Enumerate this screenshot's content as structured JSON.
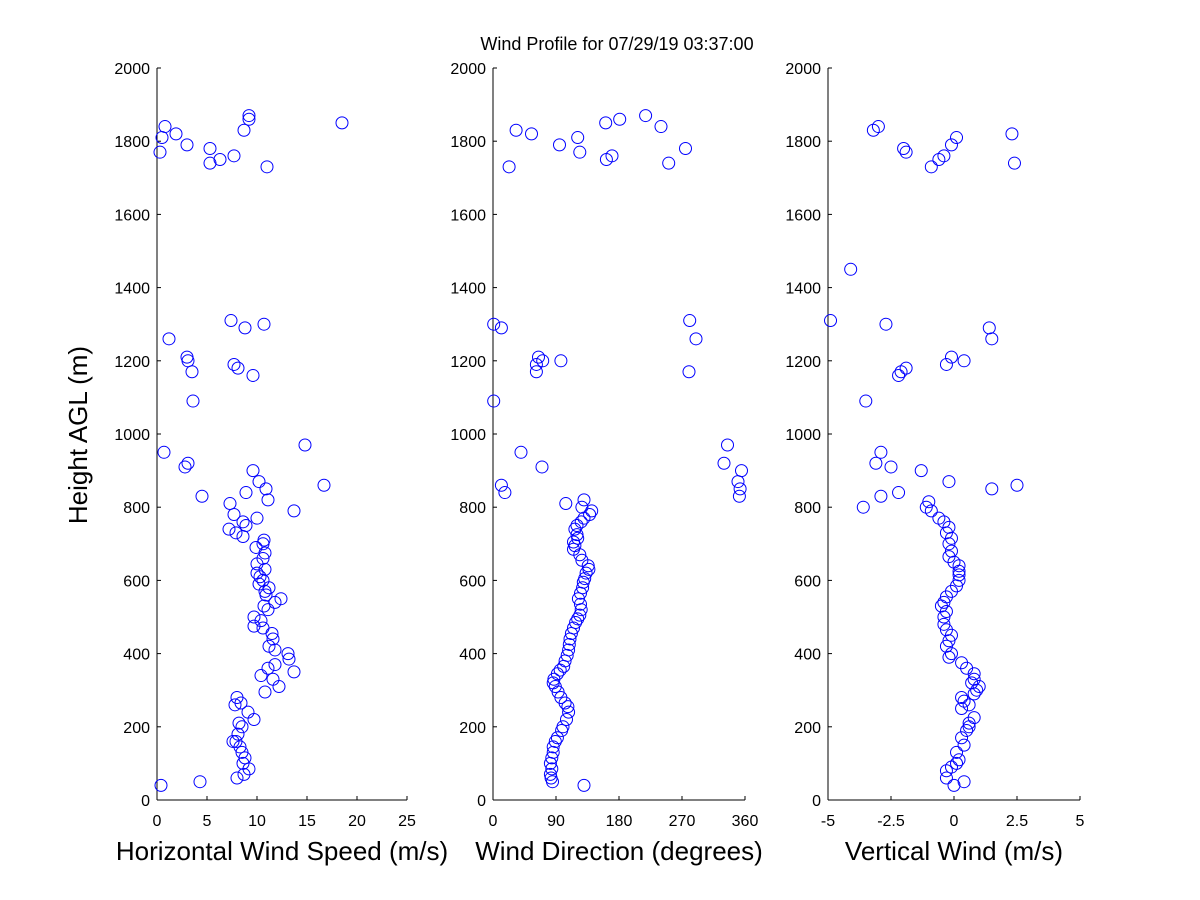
{
  "chart_data": {
    "type": "scatter",
    "title": "Wind Profile for  07/29/19 03:37:00",
    "ylabel": "Height AGL (m)",
    "ylim": [
      0,
      2000
    ],
    "yticks": [
      "0",
      "200",
      "400",
      "600",
      "800",
      "1000",
      "1200",
      "1400",
      "1600",
      "1800",
      "2000"
    ],
    "marker_color": "#0000ff",
    "grid": false,
    "panels": [
      {
        "xlabel": "Horizontal Wind Speed (m/s)",
        "xlim": [
          0,
          25
        ],
        "xticks": [
          "0",
          "5",
          "10",
          "15",
          "20",
          "25"
        ],
        "points": [
          [
            0.4,
            40
          ],
          [
            4.3,
            50
          ],
          [
            8.0,
            60
          ],
          [
            8.7,
            70
          ],
          [
            9.2,
            85
          ],
          [
            8.6,
            100
          ],
          [
            8.8,
            115
          ],
          [
            8.5,
            130
          ],
          [
            8.3,
            145
          ],
          [
            7.9,
            160
          ],
          [
            7.6,
            160
          ],
          [
            8.1,
            180
          ],
          [
            8.5,
            200
          ],
          [
            8.2,
            210
          ],
          [
            9.7,
            220
          ],
          [
            9.1,
            240
          ],
          [
            7.8,
            260
          ],
          [
            8.4,
            265
          ],
          [
            8.0,
            280
          ],
          [
            10.8,
            295
          ],
          [
            12.2,
            310
          ],
          [
            11.6,
            330
          ],
          [
            10.4,
            340
          ],
          [
            11.1,
            360
          ],
          [
            11.8,
            370
          ],
          [
            13.7,
            350
          ],
          [
            13.2,
            385
          ],
          [
            13.1,
            400
          ],
          [
            11.8,
            410
          ],
          [
            11.2,
            420
          ],
          [
            11.6,
            440
          ],
          [
            11.5,
            455
          ],
          [
            10.6,
            470
          ],
          [
            9.7,
            475
          ],
          [
            10.4,
            490
          ],
          [
            9.7,
            500
          ],
          [
            11.1,
            520
          ],
          [
            10.7,
            530
          ],
          [
            11.8,
            540
          ],
          [
            12.4,
            550
          ],
          [
            10.9,
            560
          ],
          [
            10.8,
            570
          ],
          [
            11.2,
            580
          ],
          [
            10.2,
            590
          ],
          [
            10.6,
            600
          ],
          [
            10.3,
            610
          ],
          [
            10.0,
            620
          ],
          [
            10.8,
            630
          ],
          [
            10.0,
            645
          ],
          [
            10.6,
            660
          ],
          [
            10.8,
            675
          ],
          [
            9.9,
            690
          ],
          [
            10.6,
            700
          ],
          [
            10.7,
            710
          ],
          [
            8.6,
            720
          ],
          [
            7.9,
            730
          ],
          [
            7.2,
            740
          ],
          [
            8.9,
            750
          ],
          [
            8.6,
            760
          ],
          [
            10.0,
            770
          ],
          [
            7.7,
            780
          ],
          [
            13.7,
            790
          ],
          [
            7.3,
            810
          ],
          [
            11.1,
            820
          ],
          [
            8.9,
            840
          ],
          [
            10.9,
            850
          ],
          [
            16.7,
            860
          ],
          [
            10.2,
            870
          ],
          [
            9.6,
            900
          ],
          [
            4.5,
            830
          ],
          [
            3.1,
            920
          ],
          [
            2.8,
            910
          ],
          [
            0.7,
            950
          ],
          [
            14.8,
            970
          ],
          [
            3.6,
            1090
          ],
          [
            3.5,
            1170
          ],
          [
            8.1,
            1180
          ],
          [
            7.7,
            1190
          ],
          [
            3.1,
            1200
          ],
          [
            3.0,
            1210
          ],
          [
            9.6,
            1160
          ],
          [
            1.2,
            1260
          ],
          [
            8.8,
            1290
          ],
          [
            10.7,
            1300
          ],
          [
            7.4,
            1310
          ],
          [
            0.3,
            1770
          ],
          [
            11.0,
            1730
          ],
          [
            5.3,
            1740
          ],
          [
            6.3,
            1750
          ],
          [
            5.3,
            1780
          ],
          [
            7.7,
            1760
          ],
          [
            3.0,
            1790
          ],
          [
            0.5,
            1810
          ],
          [
            1.9,
            1820
          ],
          [
            0.8,
            1840
          ],
          [
            8.7,
            1830
          ],
          [
            18.5,
            1850
          ],
          [
            9.2,
            1860
          ],
          [
            9.2,
            1870
          ]
        ]
      },
      {
        "xlabel": "Wind Direction (degrees)",
        "xlim": [
          0,
          360
        ],
        "xticks": [
          "0",
          "90",
          "180",
          "270",
          "360"
        ],
        "points": [
          [
            130,
            40
          ],
          [
            85,
            50
          ],
          [
            83,
            60
          ],
          [
            82,
            70
          ],
          [
            84,
            85
          ],
          [
            82,
            100
          ],
          [
            84,
            115
          ],
          [
            86,
            130
          ],
          [
            86,
            145
          ],
          [
            89,
            160
          ],
          [
            92,
            170
          ],
          [
            98,
            190
          ],
          [
            100,
            200
          ],
          [
            105,
            220
          ],
          [
            108,
            240
          ],
          [
            107,
            255
          ],
          [
            103,
            265
          ],
          [
            97,
            280
          ],
          [
            93,
            295
          ],
          [
            89,
            310
          ],
          [
            86,
            320
          ],
          [
            87,
            330
          ],
          [
            92,
            345
          ],
          [
            96,
            355
          ],
          [
            101,
            365
          ],
          [
            103,
            380
          ],
          [
            106,
            395
          ],
          [
            108,
            410
          ],
          [
            109,
            425
          ],
          [
            110,
            440
          ],
          [
            112,
            455
          ],
          [
            115,
            470
          ],
          [
            118,
            485
          ],
          [
            121,
            495
          ],
          [
            124,
            505
          ],
          [
            126,
            520
          ],
          [
            125,
            535
          ],
          [
            122,
            550
          ],
          [
            125,
            565
          ],
          [
            128,
            580
          ],
          [
            129,
            595
          ],
          [
            131,
            605
          ],
          [
            133,
            620
          ],
          [
            137,
            630
          ],
          [
            136,
            640
          ],
          [
            127,
            655
          ],
          [
            124,
            670
          ],
          [
            115,
            685
          ],
          [
            117,
            695
          ],
          [
            115,
            705
          ],
          [
            121,
            715
          ],
          [
            120,
            725
          ],
          [
            117,
            740
          ],
          [
            120,
            750
          ],
          [
            126,
            760
          ],
          [
            130,
            770
          ],
          [
            138,
            780
          ],
          [
            141,
            790
          ],
          [
            127,
            800
          ],
          [
            104,
            810
          ],
          [
            130,
            820
          ],
          [
            17,
            840
          ],
          [
            12,
            860
          ],
          [
            70,
            910
          ],
          [
            40,
            950
          ],
          [
            1,
            1090
          ],
          [
            62,
            1170
          ],
          [
            62,
            1190
          ],
          [
            71,
            1200
          ],
          [
            97,
            1200
          ],
          [
            65,
            1210
          ],
          [
            280,
            1170
          ],
          [
            290,
            1260
          ],
          [
            12,
            1290
          ],
          [
            1,
            1300
          ],
          [
            281,
            1310
          ],
          [
            330,
            920
          ],
          [
            335,
            970
          ],
          [
            355,
            900
          ],
          [
            350,
            870
          ],
          [
            353,
            850
          ],
          [
            352,
            830
          ],
          [
            23,
            1730
          ],
          [
            251,
            1740
          ],
          [
            162,
            1750
          ],
          [
            170,
            1760
          ],
          [
            275,
            1780
          ],
          [
            124,
            1770
          ],
          [
            95,
            1790
          ],
          [
            121,
            1810
          ],
          [
            33,
            1830
          ],
          [
            55,
            1820
          ],
          [
            240,
            1840
          ],
          [
            161,
            1850
          ],
          [
            181,
            1860
          ],
          [
            218,
            1870
          ]
        ]
      },
      {
        "xlabel": "Vertical Wind (m/s)",
        "xlim": [
          -5,
          5
        ],
        "xticks": [
          "-5",
          "-2.5",
          "0",
          "2.5",
          "5"
        ],
        "points": [
          [
            0.0,
            40
          ],
          [
            0.4,
            50
          ],
          [
            -0.3,
            60
          ],
          [
            -0.3,
            80
          ],
          [
            -0.1,
            90
          ],
          [
            0.1,
            100
          ],
          [
            0.2,
            110
          ],
          [
            0.1,
            130
          ],
          [
            0.4,
            150
          ],
          [
            0.3,
            170
          ],
          [
            0.5,
            190
          ],
          [
            0.6,
            200
          ],
          [
            0.6,
            210
          ],
          [
            0.8,
            225
          ],
          [
            0.3,
            250
          ],
          [
            0.6,
            260
          ],
          [
            0.4,
            270
          ],
          [
            0.3,
            280
          ],
          [
            0.8,
            290
          ],
          [
            0.9,
            300
          ],
          [
            1.0,
            310
          ],
          [
            0.7,
            320
          ],
          [
            0.8,
            330
          ],
          [
            0.8,
            345
          ],
          [
            0.5,
            360
          ],
          [
            0.3,
            375
          ],
          [
            -0.2,
            390
          ],
          [
            -0.1,
            400
          ],
          [
            -0.3,
            420
          ],
          [
            -0.2,
            435
          ],
          [
            -0.1,
            450
          ],
          [
            -0.3,
            465
          ],
          [
            -0.4,
            480
          ],
          [
            -0.4,
            500
          ],
          [
            -0.3,
            515
          ],
          [
            -0.5,
            530
          ],
          [
            -0.4,
            540
          ],
          [
            -0.3,
            555
          ],
          [
            -0.1,
            570
          ],
          [
            0.1,
            585
          ],
          [
            0.2,
            600
          ],
          [
            0.2,
            615
          ],
          [
            0.2,
            625
          ],
          [
            0.2,
            640
          ],
          [
            0.0,
            650
          ],
          [
            -0.2,
            665
          ],
          [
            -0.1,
            680
          ],
          [
            -0.2,
            700
          ],
          [
            -0.1,
            715
          ],
          [
            -0.3,
            730
          ],
          [
            -0.2,
            745
          ],
          [
            -0.4,
            760
          ],
          [
            -0.6,
            770
          ],
          [
            -0.9,
            790
          ],
          [
            -1.1,
            800
          ],
          [
            -1.0,
            815
          ],
          [
            -1.3,
            900
          ],
          [
            -0.2,
            870
          ],
          [
            1.5,
            850
          ],
          [
            2.5,
            860
          ],
          [
            -2.2,
            840
          ],
          [
            -2.9,
            830
          ],
          [
            -3.6,
            800
          ],
          [
            -3.1,
            920
          ],
          [
            -2.5,
            910
          ],
          [
            -2.9,
            950
          ],
          [
            -3.5,
            1090
          ],
          [
            -2.2,
            1160
          ],
          [
            -2.1,
            1170
          ],
          [
            -1.9,
            1180
          ],
          [
            -0.3,
            1190
          ],
          [
            -0.1,
            1210
          ],
          [
            0.4,
            1200
          ],
          [
            1.5,
            1260
          ],
          [
            1.4,
            1290
          ],
          [
            -2.7,
            1300
          ],
          [
            -4.9,
            1310
          ],
          [
            -4.1,
            1450
          ],
          [
            -0.9,
            1730
          ],
          [
            -0.6,
            1750
          ],
          [
            -0.4,
            1760
          ],
          [
            2.4,
            1740
          ],
          [
            -1.9,
            1770
          ],
          [
            -2.0,
            1780
          ],
          [
            -0.1,
            1790
          ],
          [
            0.1,
            1810
          ],
          [
            -3.2,
            1830
          ],
          [
            -3.0,
            1840
          ],
          [
            2.3,
            1820
          ]
        ]
      }
    ]
  }
}
